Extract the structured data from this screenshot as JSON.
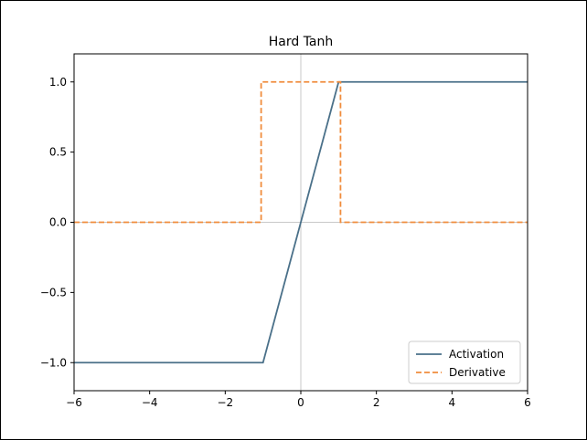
{
  "chart_data": {
    "type": "line",
    "title": "Hard Tanh",
    "xlabel": "",
    "ylabel": "",
    "xlim": [
      -6,
      6
    ],
    "ylim": [
      -1.2,
      1.2
    ],
    "xticks": [
      -6,
      -4,
      -2,
      0,
      2,
      4,
      6
    ],
    "xtick_labels": [
      "−6",
      "−4",
      "−2",
      "0",
      "2",
      "4",
      "6"
    ],
    "yticks": [
      -1.0,
      -0.5,
      0.0,
      0.5,
      1.0
    ],
    "ytick_labels": [
      "−1.0",
      "−0.5",
      "0.0",
      "0.5",
      "1.0"
    ],
    "grid": false,
    "reference_lines": {
      "x": 0,
      "y": 0
    },
    "legend_position": "lower-right",
    "series": [
      {
        "name": "Activation",
        "color": "#4a7089",
        "style": "solid",
        "x": [
          -6,
          -1,
          1,
          6
        ],
        "y": [
          -1,
          -1,
          1,
          1
        ]
      },
      {
        "name": "Derivative",
        "color": "#f08c3c",
        "style": "dashed",
        "x": [
          -6,
          -1.05,
          -1.05,
          1.05,
          1.05,
          6
        ],
        "y": [
          0,
          0,
          1,
          1,
          0,
          0
        ]
      }
    ]
  }
}
